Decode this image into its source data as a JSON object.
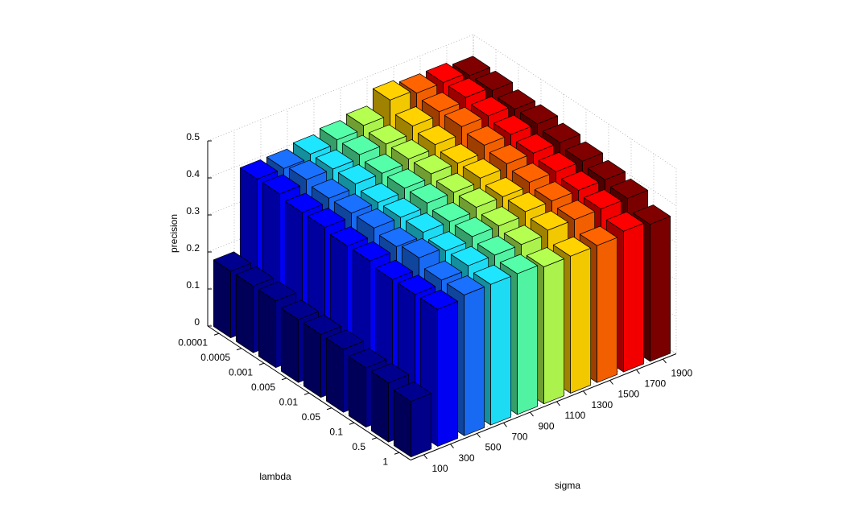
{
  "chart_data": {
    "type": "bar3d",
    "ylabel": "precision",
    "xlabel": "lambda",
    "depth_label": "sigma",
    "categories": [
      "0.0001",
      "0.0005",
      "0.001",
      "0.005",
      "0.01",
      "0.05",
      "0.1",
      "0.5",
      "1"
    ],
    "series": [
      {
        "name": "100",
        "color": "#00008f",
        "values": [
          0.18,
          0.18,
          0.18,
          0.17,
          0.17,
          0.17,
          0.16,
          0.16,
          0.15
        ]
      },
      {
        "name": "300",
        "color": "#0000ff",
        "values": [
          0.4,
          0.4,
          0.39,
          0.39,
          0.38,
          0.38,
          0.37,
          0.37,
          0.37
        ]
      },
      {
        "name": "500",
        "color": "#1a70ff",
        "values": [
          0.4,
          0.41,
          0.4,
          0.4,
          0.4,
          0.39,
          0.4,
          0.38,
          0.38
        ]
      },
      {
        "name": "700",
        "color": "#1ee6ff",
        "values": [
          0.41,
          0.41,
          0.41,
          0.4,
          0.4,
          0.4,
          0.39,
          0.39,
          0.38
        ]
      },
      {
        "name": "900",
        "color": "#55ffaa",
        "values": [
          0.42,
          0.42,
          0.41,
          0.41,
          0.41,
          0.4,
          0.4,
          0.39,
          0.38
        ]
      },
      {
        "name": "1100",
        "color": "#b4ff50",
        "values": [
          0.43,
          0.42,
          0.42,
          0.42,
          0.41,
          0.41,
          0.4,
          0.39,
          0.37
        ]
      },
      {
        "name": "1300",
        "color": "#ffd200",
        "values": [
          0.47,
          0.44,
          0.43,
          0.42,
          0.42,
          0.41,
          0.41,
          0.4,
          0.37
        ]
      },
      {
        "name": "1500",
        "color": "#ff6400",
        "values": [
          0.46,
          0.45,
          0.45,
          0.44,
          0.43,
          0.42,
          0.41,
          0.4,
          0.37
        ]
      },
      {
        "name": "1700",
        "color": "#ff0000",
        "values": [
          0.46,
          0.46,
          0.45,
          0.44,
          0.43,
          0.42,
          0.41,
          0.4,
          0.38
        ]
      },
      {
        "name": "1900",
        "color": "#800000",
        "values": [
          0.45,
          0.45,
          0.44,
          0.44,
          0.43,
          0.42,
          0.41,
          0.4,
          0.37
        ]
      }
    ],
    "ylim": [
      0,
      0.5
    ],
    "yticks": [
      0,
      0.1,
      0.2,
      0.3,
      0.4,
      0.5
    ],
    "grid": true
  }
}
